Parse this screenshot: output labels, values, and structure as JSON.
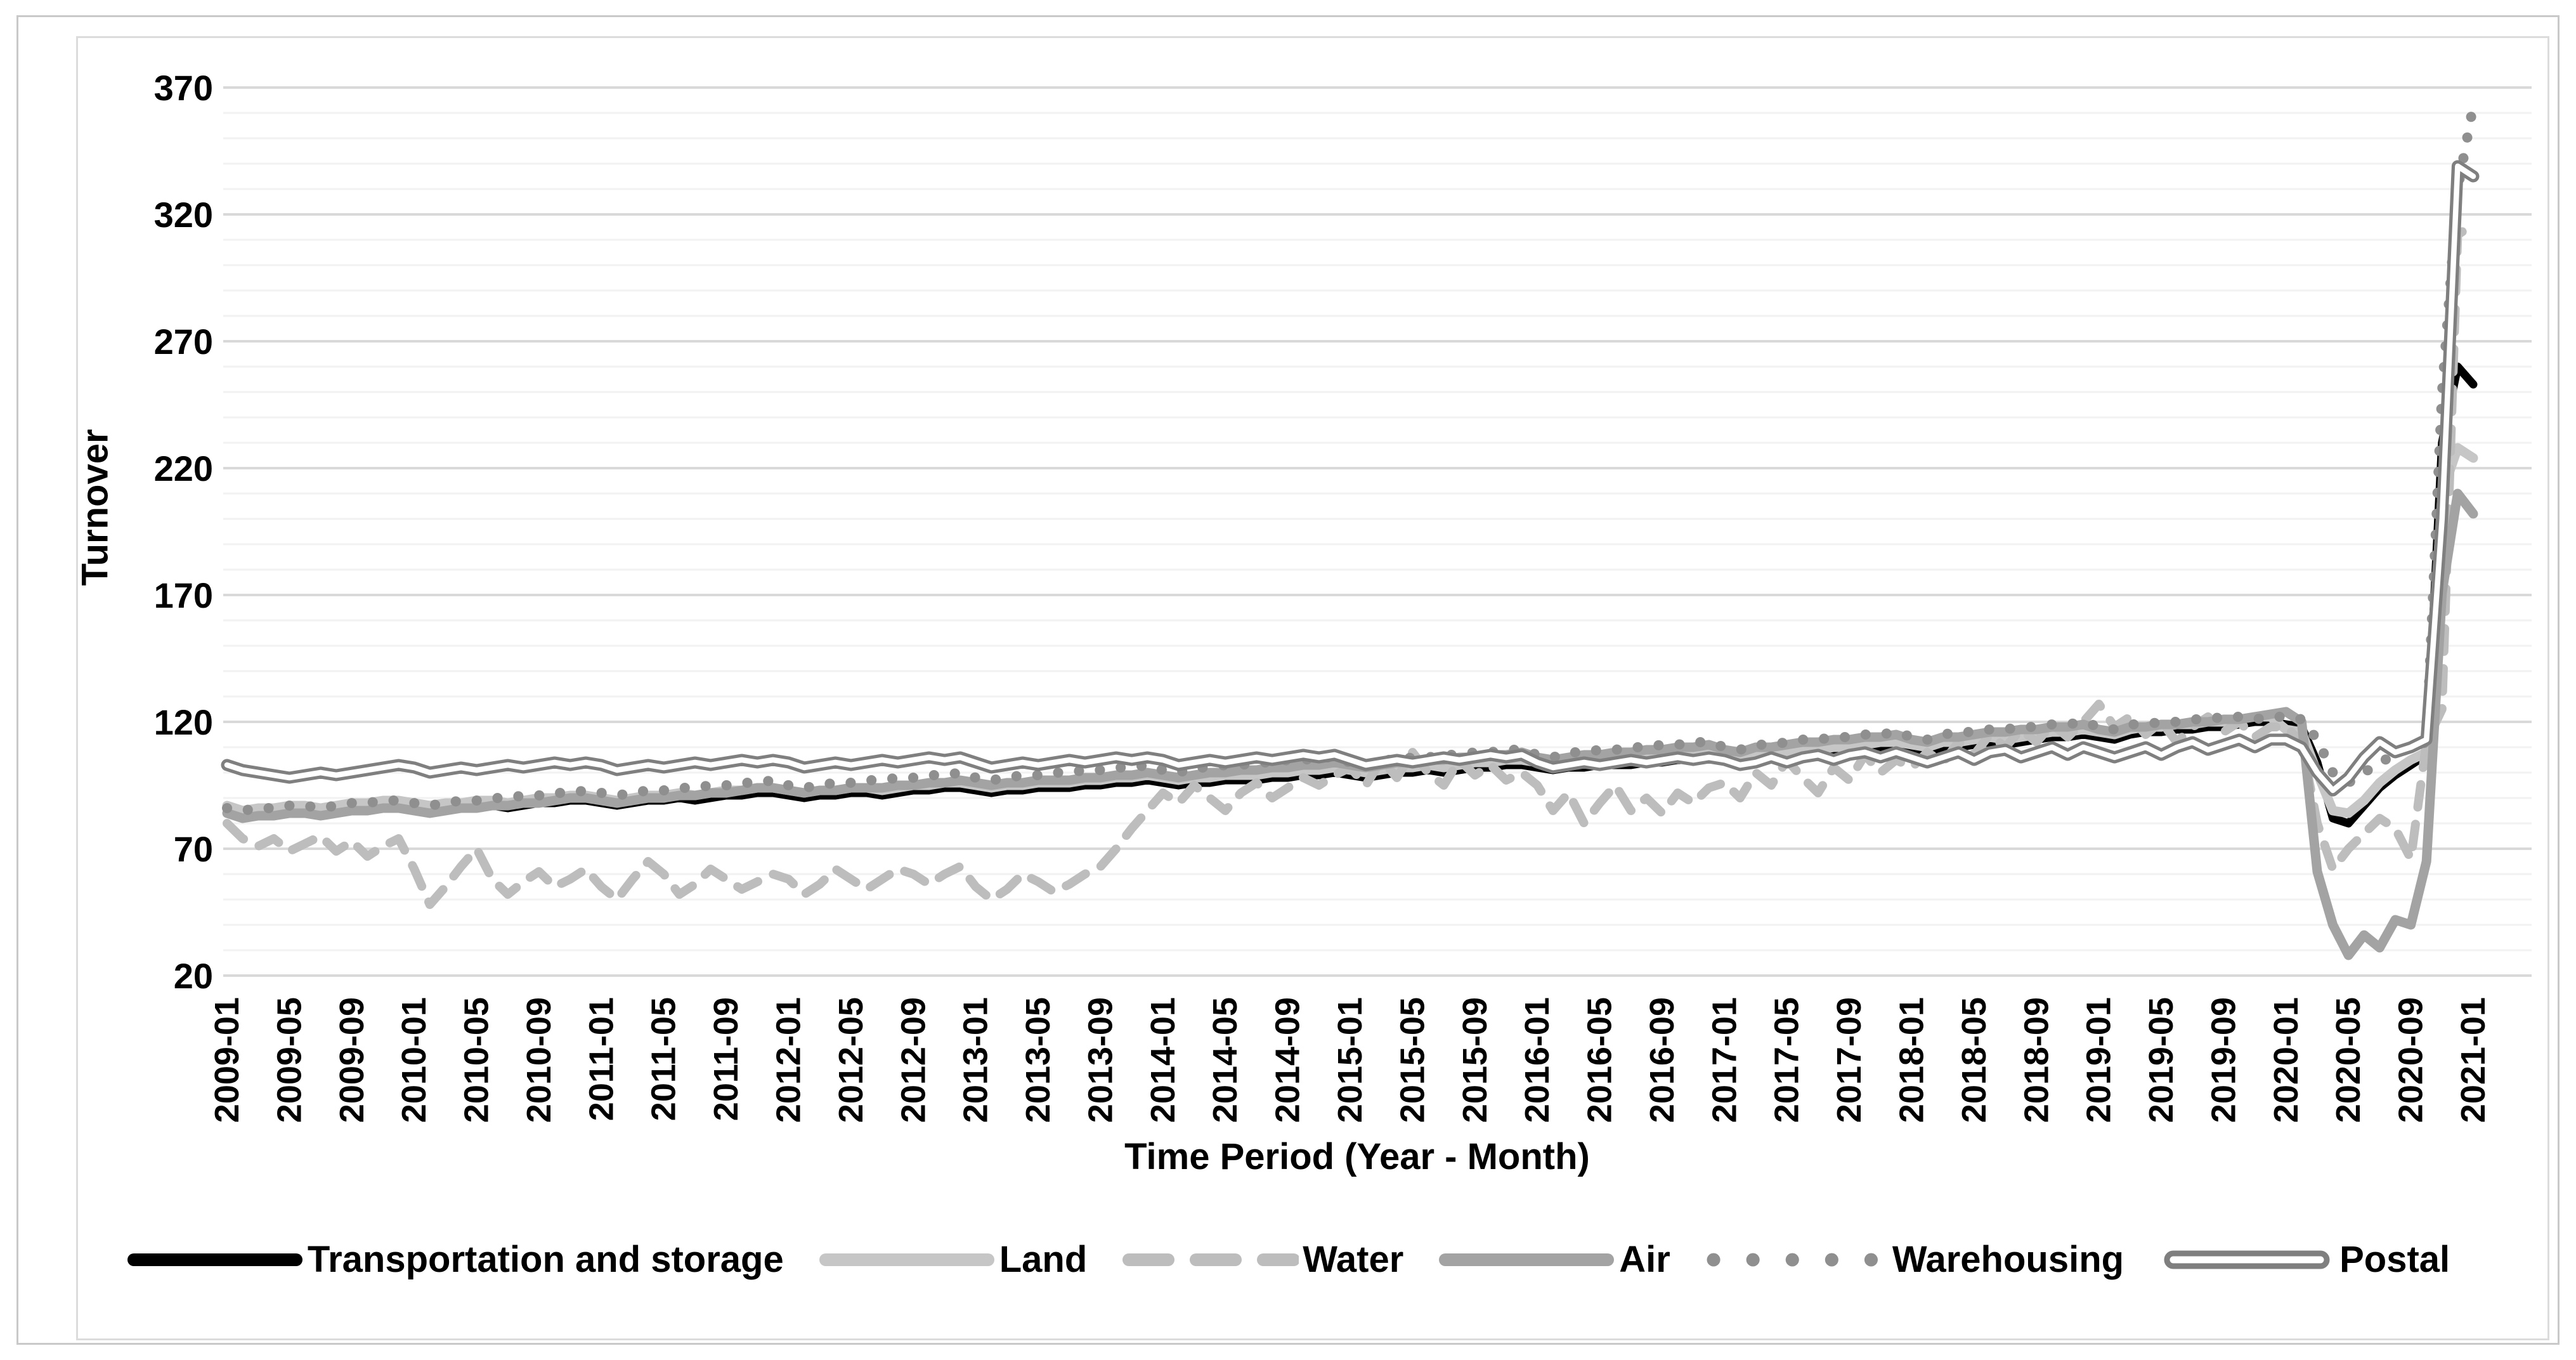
{
  "chart_data": {
    "type": "line",
    "title": "",
    "xlabel": "Time Period (Year - Month)",
    "ylabel": "Turnover",
    "ylim": [
      20,
      370
    ],
    "y_ticks": [
      20,
      70,
      120,
      170,
      220,
      270,
      320,
      370
    ],
    "grid": "horizontal, minor every 10 (light), major every 50 (darker)",
    "legend_position": "bottom",
    "x_start": "2009-01",
    "x_end": "2021-01",
    "x_resolution": "monthly (145 points per series)",
    "x_tick_labels": [
      "2009-01",
      "2009-05",
      "2009-09",
      "2010-01",
      "2010-05",
      "2010-09",
      "2011-01",
      "2011-05",
      "2011-09",
      "2012-01",
      "2012-05",
      "2012-09",
      "2013-01",
      "2013-05",
      "2013-09",
      "2014-01",
      "2014-05",
      "2014-09",
      "2015-01",
      "2015-05",
      "2015-09",
      "2016-01",
      "2016-05",
      "2016-09",
      "2017-01",
      "2017-05",
      "2017-09",
      "2018-01",
      "2018-05",
      "2018-09",
      "2019-01",
      "2019-05",
      "2019-09",
      "2020-01",
      "2020-05",
      "2020-09",
      "2021-01"
    ],
    "colors": {
      "transportation": "#000000",
      "land": "#c6c6c6",
      "water": "#bdbdbd",
      "air": "#a3a3a3",
      "warehousing": "#8f8f8f",
      "postal": "#7f7f7f",
      "grid_minor": "#f2f2f2",
      "grid_major": "#d9d9d9"
    },
    "series": [
      {
        "name": "Transportation and storage",
        "style": "solid",
        "color": "#000000",
        "width": 13,
        "values": [
          85,
          83,
          84,
          84,
          85,
          85,
          84,
          85,
          86,
          86,
          87,
          87,
          86,
          85,
          86,
          86,
          87,
          87,
          86,
          87,
          88,
          88,
          89,
          89,
          88,
          87,
          88,
          89,
          89,
          90,
          89,
          90,
          91,
          91,
          92,
          92,
          91,
          90,
          91,
          91,
          92,
          92,
          91,
          92,
          93,
          93,
          94,
          94,
          93,
          92,
          93,
          93,
          94,
          94,
          94,
          95,
          95,
          96,
          96,
          97,
          96,
          95,
          96,
          96,
          97,
          97,
          97,
          98,
          98,
          99,
          99,
          100,
          99,
          98,
          99,
          100,
          100,
          101,
          100,
          101,
          102,
          102,
          103,
          103,
          102,
          101,
          102,
          102,
          103,
          103,
          103,
          104,
          104,
          105,
          105,
          106,
          105,
          104,
          105,
          106,
          106,
          107,
          107,
          108,
          108,
          109,
          110,
          110,
          109,
          108,
          110,
          110,
          111,
          112,
          111,
          112,
          113,
          114,
          114,
          115,
          114,
          113,
          115,
          116,
          116,
          117,
          117,
          118,
          118,
          119,
          120,
          120,
          119,
          118,
          104,
          82,
          80,
          87,
          94,
          99,
          103,
          107,
          230,
          260,
          253
        ]
      },
      {
        "name": "Land",
        "style": "solid",
        "color": "#c6c6c6",
        "width": 15,
        "values": [
          87,
          85,
          86,
          86,
          87,
          87,
          86,
          87,
          88,
          88,
          89,
          89,
          88,
          87,
          88,
          88,
          89,
          89,
          88,
          89,
          90,
          90,
          91,
          91,
          90,
          89,
          90,
          91,
          91,
          92,
          91,
          92,
          93,
          93,
          94,
          94,
          93,
          92,
          93,
          93,
          94,
          94,
          93,
          94,
          95,
          95,
          96,
          96,
          95,
          94,
          95,
          95,
          96,
          96,
          96,
          97,
          97,
          98,
          98,
          99,
          98,
          97,
          98,
          98,
          99,
          99,
          99,
          100,
          100,
          101,
          101,
          102,
          101,
          100,
          101,
          102,
          102,
          103,
          102,
          103,
          104,
          104,
          105,
          105,
          104,
          103,
          104,
          104,
          105,
          105,
          105,
          106,
          106,
          107,
          107,
          108,
          107,
          106,
          107,
          108,
          108,
          109,
          109,
          110,
          110,
          111,
          112,
          112,
          111,
          110,
          112,
          112,
          113,
          114,
          113,
          114,
          115,
          116,
          116,
          117,
          116,
          115,
          117,
          118,
          118,
          119,
          119,
          120,
          120,
          121,
          122,
          122,
          117,
          116,
          100,
          85,
          84,
          89,
          96,
          101,
          105,
          108,
          210,
          228,
          224
        ]
      },
      {
        "name": "Water",
        "style": "dashed",
        "color": "#bdbdbd",
        "width": 14,
        "values": [
          80,
          74,
          71,
          74,
          69,
          72,
          75,
          69,
          73,
          67,
          71,
          74,
          62,
          48,
          55,
          63,
          70,
          58,
          52,
          57,
          61,
          55,
          58,
          62,
          55,
          50,
          58,
          65,
          60,
          52,
          56,
          62,
          58,
          54,
          57,
          60,
          58,
          52,
          56,
          62,
          58,
          54,
          58,
          62,
          60,
          56,
          60,
          63,
          55,
          50,
          54,
          60,
          57,
          53,
          56,
          60,
          63,
          70,
          78,
          85,
          92,
          88,
          95,
          90,
          85,
          92,
          96,
          90,
          94,
          98,
          95,
          99,
          102,
          95,
          105,
          98,
          108,
          100,
          95,
          105,
          99,
          103,
          97,
          100,
          95,
          85,
          92,
          80,
          88,
          95,
          85,
          90,
          84,
          92,
          88,
          94,
          96,
          90,
          100,
          95,
          105,
          98,
          92,
          102,
          97,
          107,
          100,
          105,
          102,
          108,
          104,
          112,
          107,
          115,
          110,
          117,
          112,
          119,
          114,
          120,
          127,
          118,
          122,
          115,
          120,
          112,
          118,
          122,
          116,
          120,
          114,
          118,
          118,
          112,
          80,
          62,
          70,
          76,
          82,
          78,
          66,
          112,
          125,
          312,
          316
        ]
      },
      {
        "name": "Air",
        "style": "solid",
        "color": "#a3a3a3",
        "width": 15,
        "values": [
          84,
          82,
          83,
          83,
          84,
          84,
          83,
          84,
          85,
          85,
          86,
          86,
          85,
          84,
          85,
          86,
          86,
          87,
          87,
          88,
          88,
          89,
          90,
          90,
          89,
          88,
          89,
          90,
          90,
          91,
          91,
          92,
          92,
          93,
          94,
          94,
          93,
          92,
          93,
          93,
          94,
          94,
          94,
          95,
          95,
          96,
          96,
          97,
          96,
          95,
          96,
          96,
          97,
          97,
          97,
          98,
          98,
          99,
          99,
          100,
          99,
          98,
          99,
          100,
          100,
          101,
          101,
          102,
          102,
          103,
          103,
          104,
          103,
          102,
          103,
          104,
          104,
          105,
          105,
          106,
          106,
          107,
          107,
          108,
          106,
          105,
          106,
          107,
          107,
          108,
          108,
          109,
          109,
          110,
          110,
          111,
          109,
          108,
          110,
          110,
          111,
          112,
          112,
          113,
          113,
          114,
          114,
          115,
          113,
          112,
          114,
          114,
          115,
          116,
          116,
          117,
          117,
          118,
          118,
          119,
          117,
          116,
          118,
          118,
          119,
          119,
          120,
          120,
          121,
          121,
          122,
          123,
          124,
          120,
          61,
          40,
          28,
          36,
          31,
          42,
          40,
          65,
          171,
          210,
          202
        ]
      },
      {
        "name": "Warehousing",
        "style": "dotted",
        "color": "#8f8f8f",
        "width": 16,
        "values": [
          86,
          85,
          86,
          86,
          87,
          87,
          86,
          87,
          88,
          88,
          89,
          89,
          88,
          87,
          88,
          89,
          89,
          90,
          90,
          91,
          91,
          92,
          92,
          93,
          92,
          91,
          92,
          93,
          93,
          94,
          94,
          95,
          95,
          96,
          96,
          97,
          95,
          94,
          95,
          96,
          96,
          97,
          97,
          98,
          98,
          99,
          99,
          100,
          98,
          97,
          98,
          99,
          99,
          100,
          100,
          101,
          101,
          102,
          102,
          103,
          101,
          100,
          102,
          102,
          103,
          103,
          104,
          104,
          105,
          105,
          106,
          106,
          104,
          103,
          105,
          105,
          106,
          106,
          107,
          107,
          108,
          108,
          109,
          109,
          107,
          106,
          108,
          108,
          109,
          109,
          110,
          110,
          111,
          111,
          112,
          112,
          110,
          109,
          111,
          111,
          112,
          113,
          113,
          114,
          114,
          115,
          115,
          116,
          114,
          113,
          115,
          116,
          116,
          117,
          117,
          118,
          118,
          119,
          119,
          120,
          118,
          117,
          119,
          119,
          120,
          120,
          121,
          121,
          122,
          122,
          121,
          122,
          122,
          121,
          113,
          100,
          96,
          100,
          104,
          107,
          110,
          112,
          250,
          330,
          363
        ]
      },
      {
        "name": "Postal",
        "style": "double",
        "color": "#7f7f7f",
        "width": 19,
        "values": [
          103,
          101,
          100,
          99,
          98,
          99,
          100,
          99,
          100,
          101,
          102,
          103,
          102,
          100,
          101,
          102,
          101,
          102,
          103,
          102,
          103,
          104,
          103,
          104,
          103,
          101,
          102,
          103,
          102,
          103,
          104,
          103,
          104,
          105,
          104,
          105,
          104,
          102,
          103,
          104,
          103,
          104,
          105,
          104,
          105,
          106,
          105,
          106,
          104,
          102,
          103,
          104,
          103,
          104,
          105,
          104,
          105,
          106,
          105,
          106,
          105,
          103,
          104,
          105,
          104,
          105,
          106,
          105,
          106,
          107,
          106,
          107,
          105,
          103,
          104,
          105,
          104,
          105,
          106,
          105,
          106,
          107,
          106,
          107,
          104,
          102,
          103,
          104,
          103,
          104,
          105,
          104,
          105,
          106,
          105,
          106,
          105,
          103,
          104,
          106,
          104,
          106,
          107,
          105,
          107,
          108,
          106,
          108,
          106,
          104,
          106,
          108,
          105,
          108,
          109,
          106,
          108,
          110,
          107,
          110,
          108,
          106,
          108,
          110,
          107,
          110,
          112,
          109,
          111,
          113,
          110,
          113,
          113,
          110,
          100,
          93,
          98,
          106,
          112,
          108,
          110,
          113,
          200,
          339,
          335
        ]
      }
    ]
  }
}
